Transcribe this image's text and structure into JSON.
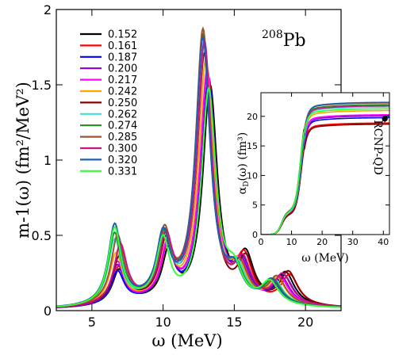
{
  "chart_data": [
    {
      "type": "line",
      "xlabel": "ω (MeV)",
      "ylabel": "m-1(ω) (fm²/MeV²)",
      "xlim": [
        2.5,
        22.5
      ],
      "ylim": [
        0,
        2
      ],
      "xticks": [
        "5",
        "10",
        "15",
        "20"
      ],
      "yticks": [
        "0",
        "0.5",
        "1",
        "1.5",
        "2"
      ],
      "annotation": "208Pb",
      "annotation_parts": {
        "sup": "208",
        "main": "Pb"
      },
      "legend_position": "top-left",
      "series": [
        {
          "name": "0.152",
          "color": "#000000",
          "peaks": [
            [
              6.9,
              0.22
            ],
            [
              10.4,
              0.33
            ],
            [
              13.3,
              1.45
            ],
            [
              15.8,
              0.3
            ],
            [
              18.6,
              0.21
            ]
          ]
        },
        {
          "name": "0.161",
          "color": "#ff0000",
          "peaks": [
            [
              6.9,
              0.24
            ],
            [
              10.3,
              0.34
            ],
            [
              13.2,
              1.5
            ],
            [
              15.7,
              0.29
            ],
            [
              18.9,
              0.2
            ]
          ]
        },
        {
          "name": "0.187",
          "color": "#0000ff",
          "peaks": [
            [
              6.8,
              0.21
            ],
            [
              10.3,
              0.36
            ],
            [
              13.2,
              1.48
            ],
            [
              15.6,
              0.25
            ],
            [
              18.5,
              0.19
            ]
          ]
        },
        {
          "name": "0.200",
          "color": "#8b00cc",
          "peaks": [
            [
              6.8,
              0.25
            ],
            [
              10.3,
              0.35
            ],
            [
              13.1,
              1.52
            ],
            [
              15.5,
              0.24
            ],
            [
              18.3,
              0.18
            ]
          ]
        },
        {
          "name": "0.217",
          "color": "#ff00ff",
          "peaks": [
            [
              6.8,
              0.27
            ],
            [
              10.3,
              0.36
            ],
            [
              13.1,
              1.55
            ],
            [
              15.4,
              0.23
            ],
            [
              18.2,
              0.18
            ]
          ]
        },
        {
          "name": "0.242",
          "color": "#ffa500",
          "peaks": [
            [
              6.7,
              0.33
            ],
            [
              10.2,
              0.38
            ],
            [
              13.0,
              1.62
            ],
            [
              15.3,
              0.22
            ],
            [
              18.0,
              0.17
            ]
          ]
        },
        {
          "name": "0.250",
          "color": "#8b0000",
          "peaks": [
            [
              6.9,
              0.3
            ],
            [
              10.2,
              0.37
            ],
            [
              12.9,
              1.66
            ],
            [
              15.8,
              0.28
            ],
            [
              18.8,
              0.22
            ]
          ]
        },
        {
          "name": "0.262",
          "color": "#40e0d0",
          "peaks": [
            [
              6.6,
              0.42
            ],
            [
              10.1,
              0.4
            ],
            [
              12.9,
              1.72
            ],
            [
              15.2,
              0.21
            ],
            [
              17.8,
              0.16
            ]
          ]
        },
        {
          "name": "0.274",
          "color": "#228b22",
          "peaks": [
            [
              6.6,
              0.46
            ],
            [
              10.1,
              0.41
            ],
            [
              12.8,
              1.78
            ],
            [
              15.1,
              0.2
            ],
            [
              17.7,
              0.16
            ]
          ]
        },
        {
          "name": "0.285",
          "color": "#a0522d",
          "peaks": [
            [
              6.8,
              0.44
            ],
            [
              10.1,
              0.43
            ],
            [
              12.8,
              1.82
            ],
            [
              15.4,
              0.22
            ],
            [
              18.0,
              0.18
            ]
          ]
        },
        {
          "name": "0.300",
          "color": "#c71585",
          "peaks": [
            [
              7.0,
              0.38
            ],
            [
              10.2,
              0.4
            ],
            [
              12.9,
              1.74
            ],
            [
              15.6,
              0.26
            ],
            [
              18.4,
              0.2
            ]
          ]
        },
        {
          "name": "0.320",
          "color": "#1e5fb4",
          "peaks": [
            [
              6.6,
              0.52
            ],
            [
              10.0,
              0.42
            ],
            [
              12.8,
              1.76
            ],
            [
              15.0,
              0.19
            ],
            [
              17.6,
              0.16
            ]
          ]
        },
        {
          "name": "0.331",
          "color": "#33ff33",
          "peaks": [
            [
              6.6,
              0.5
            ],
            [
              10.0,
              0.4
            ],
            [
              13.2,
              1.42
            ],
            [
              15.0,
              0.19
            ],
            [
              17.5,
              0.15
            ]
          ]
        }
      ]
    },
    {
      "type": "line",
      "xlabel": "ω (MeV)",
      "ylabel": "αD(ω) (fm³)",
      "ylabel_parts": {
        "pre": "α",
        "sub": "D",
        "post": "(ω) (fm³)"
      },
      "xlim": [
        0,
        42
      ],
      "ylim": [
        0,
        24
      ],
      "xticks": [
        "0",
        "10",
        "20",
        "30",
        "40"
      ],
      "yticks": [
        "0",
        "5",
        "10",
        "15",
        "20"
      ],
      "marker": {
        "label": "RCNP-QD",
        "x": 40.5,
        "y": 19.6,
        "err": 0.6
      },
      "plateaus": [
        18.8,
        18.9,
        19.8,
        20.1,
        20.3,
        21.0,
        18.7,
        21.6,
        22.0,
        22.3,
        21.8,
        22.4,
        21.3
      ]
    }
  ]
}
